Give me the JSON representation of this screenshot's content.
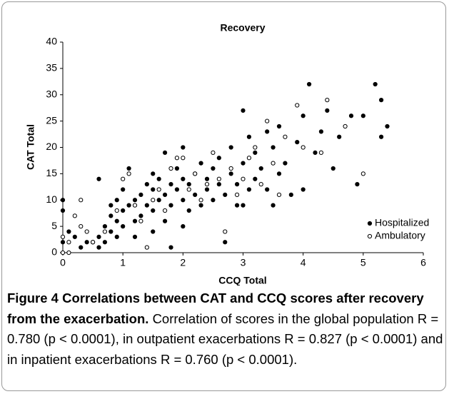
{
  "chart_data": {
    "type": "scatter",
    "title": "Recovery",
    "x_label": "CCQ Total",
    "y_label": "CAT Total",
    "xlim": [
      0,
      6
    ],
    "xticks": [
      0,
      1,
      2,
      3,
      4,
      5,
      6
    ],
    "ylim": [
      0,
      40
    ],
    "yticks": [
      0,
      5,
      10,
      15,
      20,
      25,
      30,
      35,
      40
    ],
    "grid": false,
    "legend": "lower right",
    "series": [
      {
        "name": "Hospitalized",
        "color": "#000000",
        "filled": true,
        "x": [
          0,
          0,
          0,
          0.1,
          0.2,
          0.3,
          0.4,
          0.5,
          0.6,
          0.6,
          0.6,
          0.7,
          0.7,
          0.8,
          0.8,
          0.8,
          0.9,
          0.9,
          0.9,
          1.0,
          1.0,
          1.0,
          1.1,
          1.1,
          1.2,
          1.2,
          1.3,
          1.3,
          1.4,
          1.4,
          1.5,
          1.5,
          1.5,
          1.6,
          1.6,
          1.7,
          1.7,
          1.7,
          1.8,
          1.8,
          1.8,
          1.9,
          1.9,
          2.0,
          2.0,
          2.0,
          2.1,
          2.1,
          2.2,
          2.2,
          2.3,
          2.3,
          2.4,
          2.4,
          2.5,
          2.5,
          2.6,
          2.6,
          2.7,
          2.7,
          2.8,
          2.8,
          2.9,
          2.9,
          3.0,
          3.0,
          3.1,
          3.1,
          3.2,
          3.2,
          3.3,
          3.4,
          3.4,
          3.5,
          3.5,
          3.6,
          3.6,
          3.7,
          3.8,
          3.9,
          4.0,
          4.0,
          4.1,
          4.2,
          4.3,
          4.4,
          4.5,
          4.6,
          4.8,
          4.9,
          5.0,
          5.2,
          5.3,
          5.3,
          5.4,
          2.0,
          1.5,
          1.2,
          3.0
        ],
        "values": [
          10,
          8,
          2,
          4,
          3,
          1,
          2,
          2,
          1,
          3,
          14,
          2,
          5,
          4,
          7,
          9,
          3,
          6,
          10,
          5,
          8,
          12,
          16,
          9,
          6,
          10,
          7,
          11,
          9,
          13,
          8,
          12,
          15,
          10,
          14,
          6,
          11,
          19,
          1,
          9,
          13,
          12,
          16,
          10,
          14,
          20,
          8,
          13,
          11,
          15,
          9,
          17,
          12,
          14,
          10,
          16,
          13,
          18,
          2,
          11,
          15,
          20,
          9,
          13,
          27,
          17,
          12,
          22,
          19,
          14,
          16,
          23,
          12,
          20,
          9,
          24,
          15,
          17,
          11,
          21,
          26,
          12,
          32,
          19,
          23,
          27,
          16,
          22,
          26,
          13,
          26,
          32,
          22,
          29,
          24,
          5,
          4,
          3,
          9
        ]
      },
      {
        "name": "Ambulatory",
        "color": "#000000",
        "filled": false,
        "x": [
          0,
          0,
          0.1,
          0.1,
          0.2,
          0.3,
          0.3,
          0.4,
          0.5,
          0.7,
          0.9,
          1.0,
          1.1,
          1.2,
          1.3,
          1.4,
          1.5,
          1.6,
          1.7,
          1.8,
          1.9,
          2.0,
          2.1,
          2.2,
          2.3,
          2.4,
          2.5,
          2.6,
          2.7,
          2.8,
          2.9,
          3.0,
          3.1,
          3.2,
          3.3,
          3.4,
          3.5,
          3.7,
          3.9,
          4.0,
          4.3,
          4.4,
          4.7,
          5.0,
          3.6
        ],
        "values": [
          3,
          0,
          0,
          2,
          7,
          10,
          5,
          4,
          2,
          4,
          8,
          14,
          15,
          9,
          6,
          1,
          10,
          12,
          8,
          16,
          18,
          18,
          12,
          15,
          10,
          13,
          19,
          14,
          4,
          16,
          11,
          14,
          18,
          20,
          13,
          25,
          17,
          22,
          28,
          20,
          19,
          29,
          24,
          15,
          11
        ]
      }
    ]
  },
  "caption": {
    "label": "Figure 4",
    "title": "Correlations between CAT and CCQ scores after recovery from the exacerbation.",
    "text": "Correlation of scores in the global population R = 0.780 (p < 0.0001), in outpatient exacerbations R = 0.827 (p < 0.0001) and in inpatient exacerbations R = 0.760 (p < 0.0001)."
  }
}
